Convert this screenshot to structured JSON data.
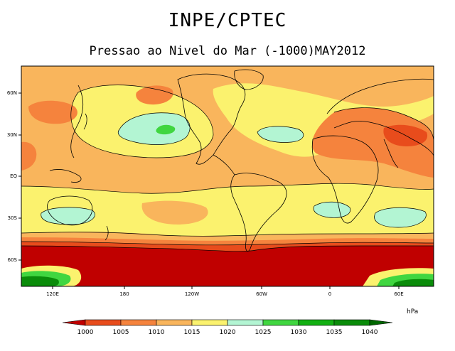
{
  "header": {
    "title": "INPE/CPTEC",
    "subtitle": "Pressao ao Nivel do Mar (-1000)MAY2012"
  },
  "map": {
    "lat_labels": [
      "60N",
      "30N",
      "EQ",
      "30S",
      "60S"
    ],
    "lon_labels": [
      "120E",
      "180",
      "120W",
      "60W",
      "0",
      "60E"
    ]
  },
  "colorbar": {
    "unit": "hPa",
    "ticks": [
      "1000",
      "1005",
      "1010",
      "1015",
      "1020",
      "1025",
      "1030",
      "1035",
      "1040"
    ],
    "colors": [
      "#c00000",
      "#e84c1c",
      "#f5833d",
      "#f9b55c",
      "#fbf26e",
      "#b3f5d3",
      "#40d640",
      "#12b012",
      "#0a8c0a",
      "#006600"
    ]
  }
}
